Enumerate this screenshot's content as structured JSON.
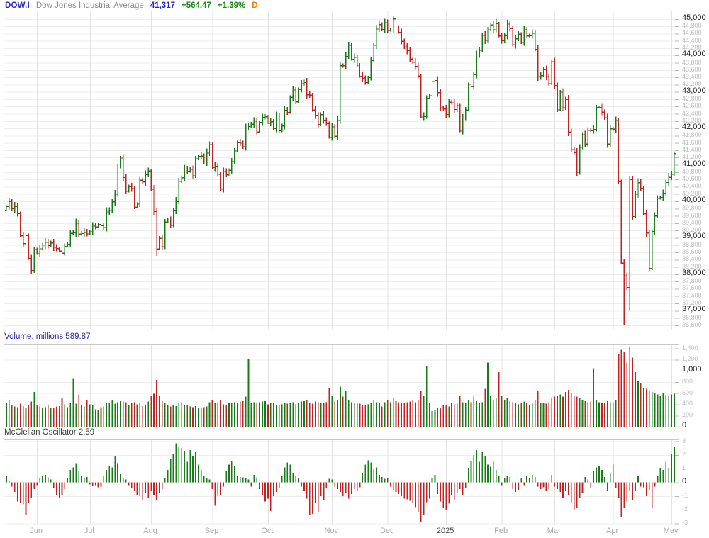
{
  "header": {
    "symbol": "DOW.I",
    "name": "Dow Jones Industrial Average",
    "last": "41,317",
    "change": "+564.47",
    "change_pct": "+1.39%",
    "period": "D"
  },
  "panel_titles": {
    "volume_label": "Volume, millions",
    "volume_value": "589.87",
    "oscillator_label": "McClellan Oscillator",
    "oscillator_value": "2.59"
  },
  "colors": {
    "up": "#177c17",
    "down": "#c12323",
    "grid_h": "#ededed",
    "grid_v": "#e4e4e4",
    "tick": "#b5b5b5"
  },
  "x_axis": {
    "labels": [
      {
        "text": "Jun",
        "i": 11
      },
      {
        "text": "Jul",
        "i": 30
      },
      {
        "text": "Aug",
        "i": 52
      },
      {
        "text": "Sep",
        "i": 74
      },
      {
        "text": "Oct",
        "i": 94
      },
      {
        "text": "Nov",
        "i": 117
      },
      {
        "text": "Dec",
        "i": 137
      },
      {
        "text": "2025",
        "i": 158,
        "major": true
      },
      {
        "text": "Feb",
        "i": 178
      },
      {
        "text": "Mar",
        "i": 197
      },
      {
        "text": "Apr",
        "i": 218
      },
      {
        "text": "May",
        "i": 239
      }
    ]
  },
  "chart_data": [
    {
      "type": "ohlc-bar",
      "title": "Dow Jones Industrial Average (daily)",
      "ylim": [
        36480,
        45210
      ],
      "y_axis": {
        "from": 36600,
        "to": 45000,
        "step": 200,
        "major_mod": 1000
      },
      "closes": [
        39869,
        40003,
        39807,
        39872,
        39671,
        39065,
        38852,
        39069,
        38441,
        38111,
        38686,
        38571,
        38711,
        38807,
        38886,
        38798,
        38868,
        38747,
        38712,
        38647,
        38589,
        38778,
        38835,
        39134,
        39150,
        39411,
        39112,
        39127,
        39164,
        39118,
        39169,
        39331,
        39308,
        39375,
        39344,
        39291,
        39721,
        39753,
        40000,
        40211,
        40954,
        41198,
        40665,
        40287,
        40415,
        40358,
        39853,
        39935,
        40589,
        40539,
        40743,
        40842,
        40347,
        39737,
        38703,
        38997,
        38763,
        39446,
        39498,
        39357,
        39766,
        40008,
        40563,
        40660,
        40897,
        40835,
        40890,
        40713,
        41175,
        41240,
        41250,
        41091,
        41335,
        41563,
        40937,
        40975,
        40756,
        40345,
        40830,
        40737,
        40862,
        41097,
        41394,
        41622,
        41606,
        41503,
        42025,
        42063,
        42124,
        42208,
        41915,
        42175,
        42313,
        42330,
        42157,
        42197,
        42012,
        42353,
        41954,
        42080,
        42512,
        42454,
        42864,
        43065,
        42740,
        43078,
        43239,
        43276,
        42931,
        42924,
        42515,
        42374,
        42114,
        42387,
        42233,
        42142,
        41763,
        42052,
        41795,
        42222,
        43730,
        43729,
        43989,
        44294,
        43911,
        43958,
        43751,
        43445,
        43389,
        43269,
        43408,
        43870,
        44297,
        44737,
        44860,
        44722,
        44911,
        44705,
        44706,
        45014,
        44766,
        44643,
        44402,
        44248,
        44149,
        43914,
        43828,
        43717,
        43450,
        42327,
        42342,
        42840,
        42906,
        43297,
        43326,
        42992,
        42573,
        42544,
        42392,
        42732,
        42707,
        42528,
        42635,
        41938,
        42297,
        42518,
        43222,
        43153,
        43488,
        44026,
        44157,
        44565,
        44424,
        44714,
        44850,
        44713,
        44882,
        44545,
        44421,
        44556,
        44873,
        44748,
        44303,
        44470,
        44594,
        44369,
        44711,
        44546,
        44557,
        44627,
        44177,
        43428,
        43461,
        43621,
        43433,
        43239,
        43841,
        43191,
        42521,
        43007,
        42579,
        42802,
        41912,
        41433,
        41351,
        40814,
        41488,
        41841,
        41581,
        41964,
        41953,
        41985,
        42583,
        42587,
        42455,
        42299,
        41583,
        42002,
        41990,
        42225,
        40546,
        38315,
        37966,
        37646,
        40608,
        39594,
        40213,
        40525,
        40369,
        39669,
        39142,
        38170,
        39187,
        39607,
        40093,
        40114,
        40228,
        40527,
        40669,
        40753,
        41317
      ],
      "overrides": {
        "54": {
          "low": 38499
        },
        "139": {
          "high": 45074
        },
        "176": {
          "high": 45010
        },
        "222": {
          "low": 36611
        },
        "224": {
          "high": 40700,
          "low": 37000
        }
      }
    },
    {
      "type": "bar",
      "title": "Volume, millions",
      "last_value": 589.87,
      "ylim": [
        0,
        1460
      ],
      "y_axis": {
        "from": 0,
        "to": 1400,
        "step": 200,
        "major_mod": 1000
      },
      "values": [
        420,
        480,
        390,
        360,
        350,
        410,
        370,
        330,
        380,
        450,
        620,
        390,
        360,
        340,
        350,
        380,
        330,
        340,
        360,
        370,
        520,
        400,
        350,
        420,
        870,
        410,
        580,
        390,
        360,
        480,
        400,
        380,
        310,
        300,
        350,
        360,
        420,
        430,
        470,
        410,
        440,
        460,
        450,
        440,
        390,
        420,
        440,
        400,
        430,
        370,
        390,
        450,
        560,
        590,
        840,
        560,
        460,
        420,
        380,
        360,
        390,
        370,
        420,
        440,
        390,
        380,
        360,
        350,
        370,
        330,
        340,
        350,
        360,
        440,
        480,
        420,
        440,
        470,
        400,
        380,
        420,
        430,
        440,
        420,
        450,
        460,
        540,
        1210,
        430,
        440,
        420,
        440,
        450,
        460,
        400,
        420,
        430,
        380,
        390,
        400,
        420,
        410,
        430,
        440,
        400,
        430,
        450,
        460,
        480,
        420,
        410,
        450,
        440,
        420,
        430,
        440,
        700,
        560,
        460,
        480,
        720,
        540,
        640,
        480,
        440,
        420,
        430,
        410,
        390,
        380,
        400,
        420,
        480,
        440,
        420,
        360,
        440,
        480,
        440,
        520,
        460,
        440,
        420,
        430,
        440,
        450,
        470,
        440,
        480,
        640,
        560,
        1080,
        420,
        280,
        290,
        330,
        340,
        380,
        390,
        360,
        420,
        400,
        410,
        560,
        440,
        420,
        480,
        440,
        540,
        460,
        420,
        440,
        680,
        1150,
        560,
        480,
        520,
        980,
        560,
        480,
        520,
        460,
        440,
        420,
        400,
        430,
        450,
        420,
        390,
        410,
        480,
        640,
        420,
        430,
        410,
        440,
        510,
        540,
        560,
        580,
        540,
        620,
        660,
        600,
        560,
        540,
        520,
        480,
        460,
        440,
        450,
        1050,
        480,
        440,
        430,
        420,
        460,
        440,
        440,
        480,
        1300,
        1380,
        1330,
        1150,
        1430,
        1240,
        980,
        820,
        780,
        700,
        680,
        640,
        620,
        600,
        580,
        560,
        600,
        570,
        560,
        580,
        590
      ]
    },
    {
      "type": "bar",
      "title": "McClellan Oscillator",
      "last_value": 2.59,
      "ylim": [
        -3.08,
        3.08
      ],
      "y_axis": {
        "from": -3,
        "to": 3,
        "step": 1,
        "major_mod": 1000
      },
      "values": [
        0.5,
        0.1,
        -0.3,
        -0.7,
        -1.4,
        -1.5,
        -1.6,
        -2.4,
        -1.5,
        -1.1,
        -0.5,
        -0.2,
        0.3,
        0.5,
        0.55,
        0.35,
        0.2,
        -0.4,
        -0.9,
        -1.1,
        -0.9,
        -0.5,
        0.3,
        0.9,
        1.1,
        1.4,
        0.8,
        0.5,
        0.3,
        0.4,
        -0.15,
        -0.25,
        -0.2,
        -0.35,
        -0.3,
        0.5,
        0.9,
        1.2,
        1.1,
        1.9,
        1.4,
        0.6,
        0.3,
        0.2,
        -0.2,
        -0.4,
        -0.65,
        -0.9,
        -1.0,
        -1.3,
        -0.8,
        -1.15,
        -0.6,
        -0.9,
        -1.3,
        -0.8,
        -0.5,
        0.3,
        0.9,
        1.7,
        2.1,
        2.85,
        2.6,
        2.5,
        2.3,
        1.5,
        2.35,
        1.9,
        2.2,
        1.3,
        0.9,
        0.5,
        0.3,
        0.2,
        -0.5,
        -1.7,
        -1.0,
        -0.9,
        -0.3,
        0.8,
        1.3,
        1.55,
        1.2,
        0.5,
        0.4,
        0.35,
        0.3,
        0.2,
        -0.3,
        0.55,
        0.35,
        -0.5,
        -0.9,
        -1.4,
        -1.2,
        -2.1,
        -1.0,
        -0.7,
        -0.4,
        0.5,
        1.1,
        1.45,
        1.3,
        0.7,
        0.5,
        0.3,
        -0.3,
        -0.6,
        -1.2,
        -2.4,
        -2.3,
        -1.5,
        -2.2,
        -1.0,
        -1.3,
        -0.4,
        0.25,
        0.2,
        -0.3,
        -0.5,
        -0.7,
        -1.0,
        -0.8,
        -1.2,
        -0.85,
        -0.5,
        -0.6,
        -0.35,
        0.7,
        1.3,
        1.6,
        1.45,
        1.0,
        1.1,
        0.55,
        0.4,
        0.25,
        0.3,
        -0.3,
        -0.55,
        -0.7,
        -0.85,
        -1.0,
        -1.2,
        -1.25,
        -1.35,
        -1.5,
        -1.8,
        -2.2,
        -2.9,
        -2.4,
        -1.45,
        -1.2,
        0.3,
        0.55,
        -0.85,
        -1.4,
        -1.9,
        -2.05,
        -1.55,
        -0.9,
        -1.3,
        -0.75,
        -0.5,
        -0.9,
        -0.4,
        1.05,
        1.55,
        2.0,
        2.35,
        1.5,
        2.2,
        1.9,
        1.3,
        1.15,
        1.55,
        0.9,
        0.5,
        -0.2,
        0.3,
        0.5,
        0.4,
        -0.5,
        -0.7,
        -0.55,
        0.3,
        -0.2,
        0.5,
        0.3,
        0.55,
        0.4,
        -0.3,
        -0.5,
        -0.35,
        -0.6,
        -0.5,
        0.55,
        -0.3,
        -0.5,
        -0.7,
        -1.1,
        -0.6,
        -0.9,
        -1.5,
        -2.05,
        -1.9,
        -1.1,
        -0.8,
        0.4,
        0.2,
        -0.4,
        0.8,
        1.1,
        1.2,
        0.9,
        0.4,
        -0.6,
        0.7,
        1.3,
        -0.4,
        -1.1,
        -2.55,
        -1.9,
        -1.4,
        -0.6,
        -1.3,
        -0.6,
        0.45,
        -0.3,
        -0.35,
        -1.0,
        -0.55,
        -1.85,
        -0.3,
        0.5,
        1.05,
        0.9,
        1.5,
        1.05,
        2.1,
        2.59
      ]
    }
  ]
}
